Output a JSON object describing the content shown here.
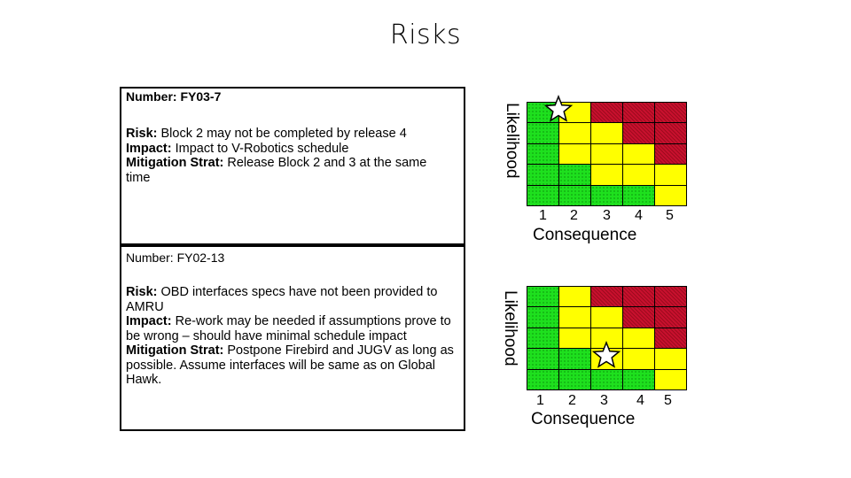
{
  "page": {
    "title": "Risks"
  },
  "risks": [
    {
      "number": "Number:  FY03-7",
      "risk_label": "Risk:",
      "risk_text": " Block 2 may not be completed by release 4",
      "impact_label": "Impact:",
      "impact_text": " Impact to V-Robotics schedule",
      "mitigation_label": "Mitigation Strat:",
      "mitigation_text": "  Release Block 2 and 3 at the same time",
      "matrix": {
        "likelihood_label": "Likelihood",
        "consequence_label": "Consequence",
        "consequence_ticks": [
          "1",
          "2",
          "3",
          "4",
          "5"
        ],
        "cells": [
          [
            "green",
            "yellow",
            "red",
            "red",
            "red"
          ],
          [
            "green",
            "yellow",
            "yellow",
            "red",
            "red"
          ],
          [
            "green",
            "yellow",
            "yellow",
            "yellow",
            "red"
          ],
          [
            "green",
            "green",
            "yellow",
            "yellow",
            "yellow"
          ],
          [
            "green",
            "green",
            "green",
            "green",
            "yellow"
          ]
        ],
        "star_row": 1,
        "star_col": 1
      }
    },
    {
      "number": "Number: FY02-13",
      "risk_label": "Risk:",
      "risk_text": " OBD interfaces specs have not been provided to AMRU",
      "impact_label": "Impact:",
      "impact_text": " Re-work may be needed if assumptions prove to be wrong – should have minimal schedule impact",
      "mitigation_label": "Mitigation Strat:",
      "mitigation_text": " Postpone Firebird and JUGV as long as possible.  Assume interfaces will be same as on Global Hawk.",
      "matrix": {
        "likelihood_label": "Likelihood",
        "consequence_label": "Consequence",
        "consequence_ticks": [
          "1",
          "2",
          "3",
          "4",
          "5"
        ],
        "cells": [
          [
            "green",
            "yellow",
            "red",
            "red",
            "red"
          ],
          [
            "green",
            "yellow",
            "yellow",
            "red",
            "red"
          ],
          [
            "green",
            "yellow",
            "yellow",
            "yellow",
            "red"
          ],
          [
            "green",
            "green",
            "yellow",
            "yellow",
            "yellow"
          ],
          [
            "green",
            "green",
            "green",
            "green",
            "yellow"
          ]
        ],
        "star_row": 4,
        "star_col": 3
      }
    }
  ],
  "colors": {
    "green": "#1ee01e",
    "yellow": "#ffff00",
    "red": "#c8102e",
    "star": "#ffffff"
  }
}
